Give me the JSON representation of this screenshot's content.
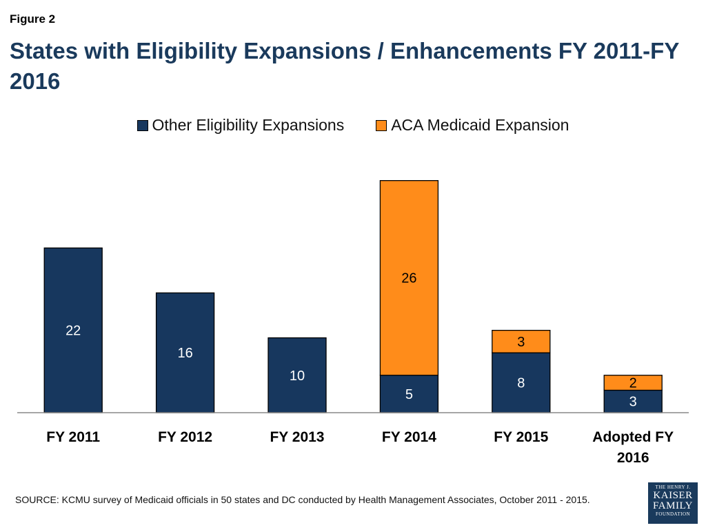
{
  "figure_label": "Figure 2",
  "title": "States with Eligibility Expansions / Enhancements FY 2011-FY 2016",
  "source": "SOURCE: KCMU survey of Medicaid officials in 50 states and DC conducted by Health Management Associates, October 2011 - 2015.",
  "logo": {
    "line1": "THE HENRY J.",
    "line2": "KAISER",
    "line3": "FAMILY",
    "line4": "FOUNDATION"
  },
  "colors": {
    "other": "#17375e",
    "aca": "#ff8c1a"
  },
  "chart_data": {
    "type": "bar",
    "stacked": true,
    "categories": [
      "FY 2011",
      "FY 2012",
      "FY 2013",
      "FY 2014",
      "FY 2015",
      "Adopted FY 2016"
    ],
    "series": [
      {
        "name": "Other Eligibility Expansions",
        "values": [
          22,
          16,
          10,
          5,
          8,
          3
        ]
      },
      {
        "name": "ACA Medicaid Expansion",
        "values": [
          0,
          0,
          0,
          26,
          3,
          2
        ]
      }
    ],
    "ylim": [
      0,
      33
    ],
    "legend": "top-center",
    "grid": false
  }
}
